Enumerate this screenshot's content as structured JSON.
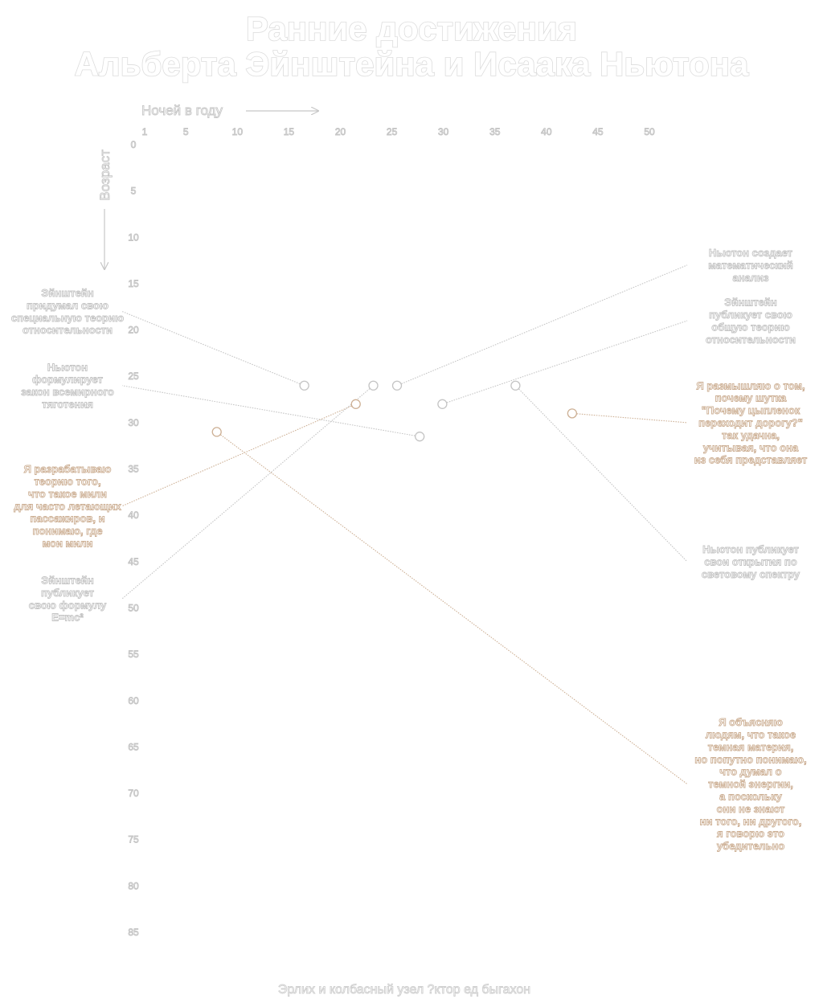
{
  "header": {
    "title_lines": [
      "Ранние достижения",
      "Альберта Эйнштейна и Исаака Ньютона"
    ]
  },
  "footer": {
    "credit": "Эрлих и колбасный узел ?ктор ед быгахон"
  },
  "colors": {
    "gray": "#c4c4c4",
    "green": "#9ab89a",
    "brown": "#cdb095",
    "background": "#ffffff"
  },
  "chart_data": {
    "type": "scatter",
    "x_axis": {
      "label": "Ночей в году",
      "ticks": [
        1,
        5,
        10,
        15,
        20,
        25,
        30,
        35,
        40,
        45,
        50
      ],
      "range": [
        1,
        50
      ],
      "position": "top"
    },
    "y_axis": {
      "label": "Возраст",
      "ticks": [
        0,
        5,
        10,
        15,
        20,
        25,
        30,
        35,
        40,
        45,
        50,
        55,
        60,
        65,
        70,
        75,
        80,
        85
      ],
      "range": [
        0,
        85
      ],
      "inverted": true
    },
    "grid": false,
    "legend": "none",
    "points": [
      {
        "x": 16.5,
        "y": 26,
        "color": "gray",
        "side": "left",
        "label_age": 18,
        "label": [
          "Эйнштейн",
          "придумал свою",
          "специальную теорию",
          "относительности"
        ]
      },
      {
        "x": 27.7,
        "y": 31.5,
        "color": "gray",
        "side": "left",
        "label_age": 26,
        "label": [
          "Ньютон",
          "формулирует",
          "закон всемирного",
          "тяготения"
        ]
      },
      {
        "x": 21.5,
        "y": 28,
        "color": "brown",
        "side": "left",
        "label_age": 39,
        "label": [
          "Я разрабатываю",
          "теорию того,",
          "что такое мили",
          "для часто летающих",
          "пассажиров, и",
          "понимаю, где",
          "мои мили"
        ]
      },
      {
        "x": 23.2,
        "y": 26,
        "color": "gray",
        "side": "left",
        "label_age": 49,
        "label": [
          "Эйнштейн",
          "публикует",
          "свою формулу",
          "E=mc²"
        ]
      },
      {
        "x": 25.5,
        "y": 26,
        "color": "gray",
        "side": "right",
        "label_age": 13,
        "label": [
          "Ньютон создает",
          "математический",
          "анализ"
        ]
      },
      {
        "x": 29.9,
        "y": 28,
        "color": "gray",
        "side": "right",
        "label_age": 19,
        "label": [
          "Эйнштейн",
          "публикует свою",
          "общую теорию",
          "относительности"
        ]
      },
      {
        "x": 37,
        "y": 26,
        "color": "gray",
        "side": "right",
        "label_age": 45,
        "label": [
          "Ньютон публикует",
          "свои открытия по",
          "световому спектру"
        ]
      },
      {
        "x": 42.5,
        "y": 29,
        "color": "brown",
        "side": "right",
        "label_age": 30,
        "label": [
          "Я размышляю о том,",
          "почему шутка",
          "\"Почему цыпленок",
          "переходит дорогу?\"",
          "так удачна,",
          "учитывая, что она",
          "из себя представляет"
        ]
      },
      {
        "x": 8,
        "y": 31,
        "color": "brown",
        "side": "right",
        "label_age": 69,
        "label": [
          "Я объясняю",
          "людям, что такое",
          "темная материя,",
          "но попутно понимаю,",
          "что думал о",
          "темной энергии,",
          "а поскольку",
          "они не знают",
          "ни того, ни другого,",
          "я говорю это",
          "убедительно"
        ]
      }
    ]
  }
}
